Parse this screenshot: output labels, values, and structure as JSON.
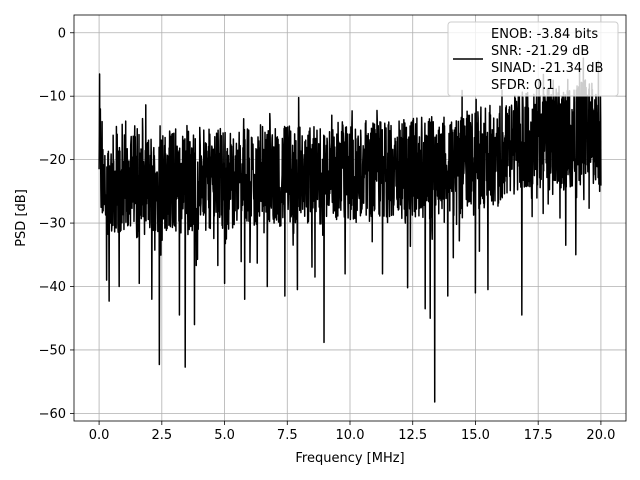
{
  "chart_data": {
    "type": "line",
    "xlabel": "Frequency [MHz]",
    "ylabel": "PSD [dB]",
    "xlim": [
      -1.0,
      21.0
    ],
    "ylim": [
      -61.2,
      2.8
    ],
    "x_ticks": [
      0.0,
      2.5,
      5.0,
      7.5,
      10.0,
      12.5,
      15.0,
      17.5,
      20.0
    ],
    "x_tick_labels": [
      "0.0",
      "2.5",
      "5.0",
      "7.5",
      "10.0",
      "12.5",
      "15.0",
      "17.5",
      "20.0"
    ],
    "y_ticks": [
      0,
      -10,
      -20,
      -30,
      -40,
      -50,
      -60
    ],
    "y_tick_labels": [
      "0",
      "−10",
      "−20",
      "−30",
      "−40",
      "−50",
      "−60"
    ],
    "grid": true,
    "legend_placement": "top-right",
    "line_color": "#000000",
    "series": [
      {
        "legend_lines": [
          "ENOB: -3.84 bits",
          "SNR: -21.29 dB",
          "SINAD: -21.34 dB",
          "SFDR: 0.1"
        ],
        "x_range": [
          0.0,
          20.0
        ],
        "num_points": 2000,
        "baseline_db": [
          [
            0.0,
            -24.0
          ],
          [
            10.0,
            -22.0
          ],
          [
            14.0,
            -21.0
          ],
          [
            16.0,
            -19.0
          ],
          [
            17.5,
            -16.0
          ],
          [
            18.5,
            -17.0
          ],
          [
            19.5,
            -15.0
          ],
          [
            20.0,
            -18.0
          ]
        ],
        "spikes": [
          {
            "x": 0.02,
            "y": -6.5
          },
          {
            "x": 0.05,
            "y": -12.0
          },
          {
            "x": 0.12,
            "y": -14.0
          },
          {
            "x": 0.3,
            "y": -39.0
          },
          {
            "x": 0.4,
            "y": -42.3
          },
          {
            "x": 0.8,
            "y": -40.0
          },
          {
            "x": 1.6,
            "y": -39.5
          },
          {
            "x": 2.1,
            "y": -42.0
          },
          {
            "x": 2.4,
            "y": -52.3
          },
          {
            "x": 3.2,
            "y": -44.5
          },
          {
            "x": 3.43,
            "y": -52.7
          },
          {
            "x": 3.8,
            "y": -46.0
          },
          {
            "x": 5.0,
            "y": -39.5
          },
          {
            "x": 5.8,
            "y": -42.0
          },
          {
            "x": 6.7,
            "y": -40.0
          },
          {
            "x": 7.4,
            "y": -41.5
          },
          {
            "x": 7.9,
            "y": -40.5
          },
          {
            "x": 8.6,
            "y": -38.5
          },
          {
            "x": 8.96,
            "y": -48.8
          },
          {
            "x": 9.8,
            "y": -38.0
          },
          {
            "x": 11.3,
            "y": -38.0
          },
          {
            "x": 12.3,
            "y": -40.2
          },
          {
            "x": 13.0,
            "y": -43.5
          },
          {
            "x": 13.2,
            "y": -45.0
          },
          {
            "x": 13.38,
            "y": -58.2
          },
          {
            "x": 13.9,
            "y": -41.5
          },
          {
            "x": 15.0,
            "y": -41.0
          },
          {
            "x": 15.5,
            "y": -40.5
          },
          {
            "x": 16.85,
            "y": -44.5
          },
          {
            "x": 17.7,
            "y": -28.5
          },
          {
            "x": 17.9,
            "y": -27.0
          },
          {
            "x": 18.1,
            "y": -7.5
          },
          {
            "x": 18.6,
            "y": -33.5
          },
          {
            "x": 19.0,
            "y": -35.0
          },
          {
            "x": 19.3,
            "y": -4.0
          },
          {
            "x": 19.9,
            "y": -4.5
          },
          {
            "x": 19.95,
            "y": -25.0
          }
        ]
      }
    ]
  }
}
